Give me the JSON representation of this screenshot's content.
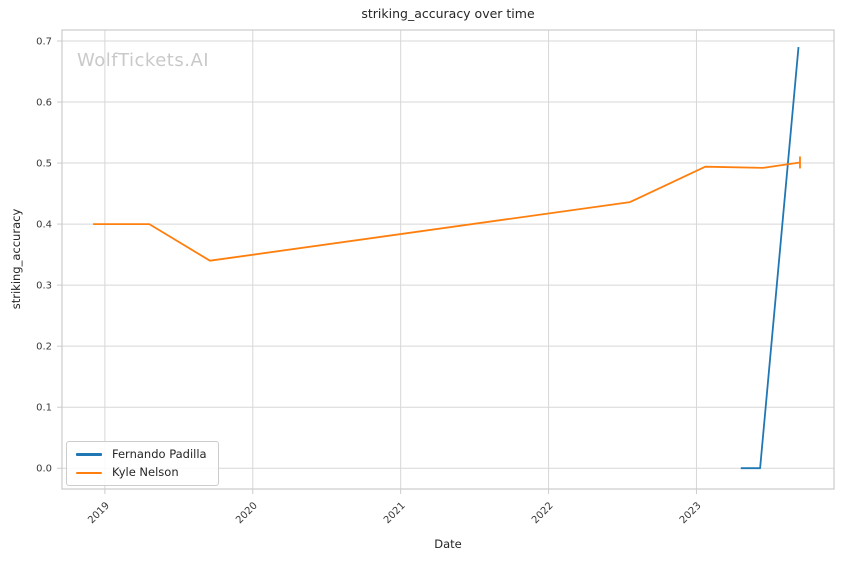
{
  "watermark": "WolfTickets.AI",
  "chart_data": {
    "type": "line",
    "title": "striking_accuracy over time",
    "xlabel": "Date",
    "ylabel": "striking_accuracy",
    "x_ticks": [
      2019,
      2020,
      2021,
      2022,
      2023
    ],
    "x_tick_labels": [
      "2019",
      "2020",
      "2021",
      "2022",
      "2023"
    ],
    "y_ticks": [
      0.0,
      0.1,
      0.2,
      0.3,
      0.4,
      0.5,
      0.6,
      0.7
    ],
    "xlim": [
      2018.71,
      2023.93
    ],
    "ylim": [
      -0.034,
      0.718
    ],
    "grid": true,
    "x_tick_rotation": 45,
    "legend_position": "lower-left",
    "colors": {
      "grid": "#d7d7d7",
      "spine": "#cccccc",
      "tick_text": "#3a3a3a",
      "title_text": "#262626",
      "watermark": "#c9c9c9"
    },
    "series": [
      {
        "name": "Fernando Padilla",
        "color": "#1f77b4",
        "x": [
          2023.3,
          2023.43,
          2023.69
        ],
        "y": [
          0.0,
          0.0,
          0.69
        ]
      },
      {
        "name": "Kyle Nelson",
        "color": "#ff7f0e",
        "end_cap": true,
        "x": [
          2018.92,
          2019.3,
          2019.71,
          2022.55,
          2023.06,
          2023.45,
          2023.7
        ],
        "y": [
          0.4,
          0.4,
          0.34,
          0.436,
          0.494,
          0.492,
          0.501
        ]
      }
    ]
  }
}
